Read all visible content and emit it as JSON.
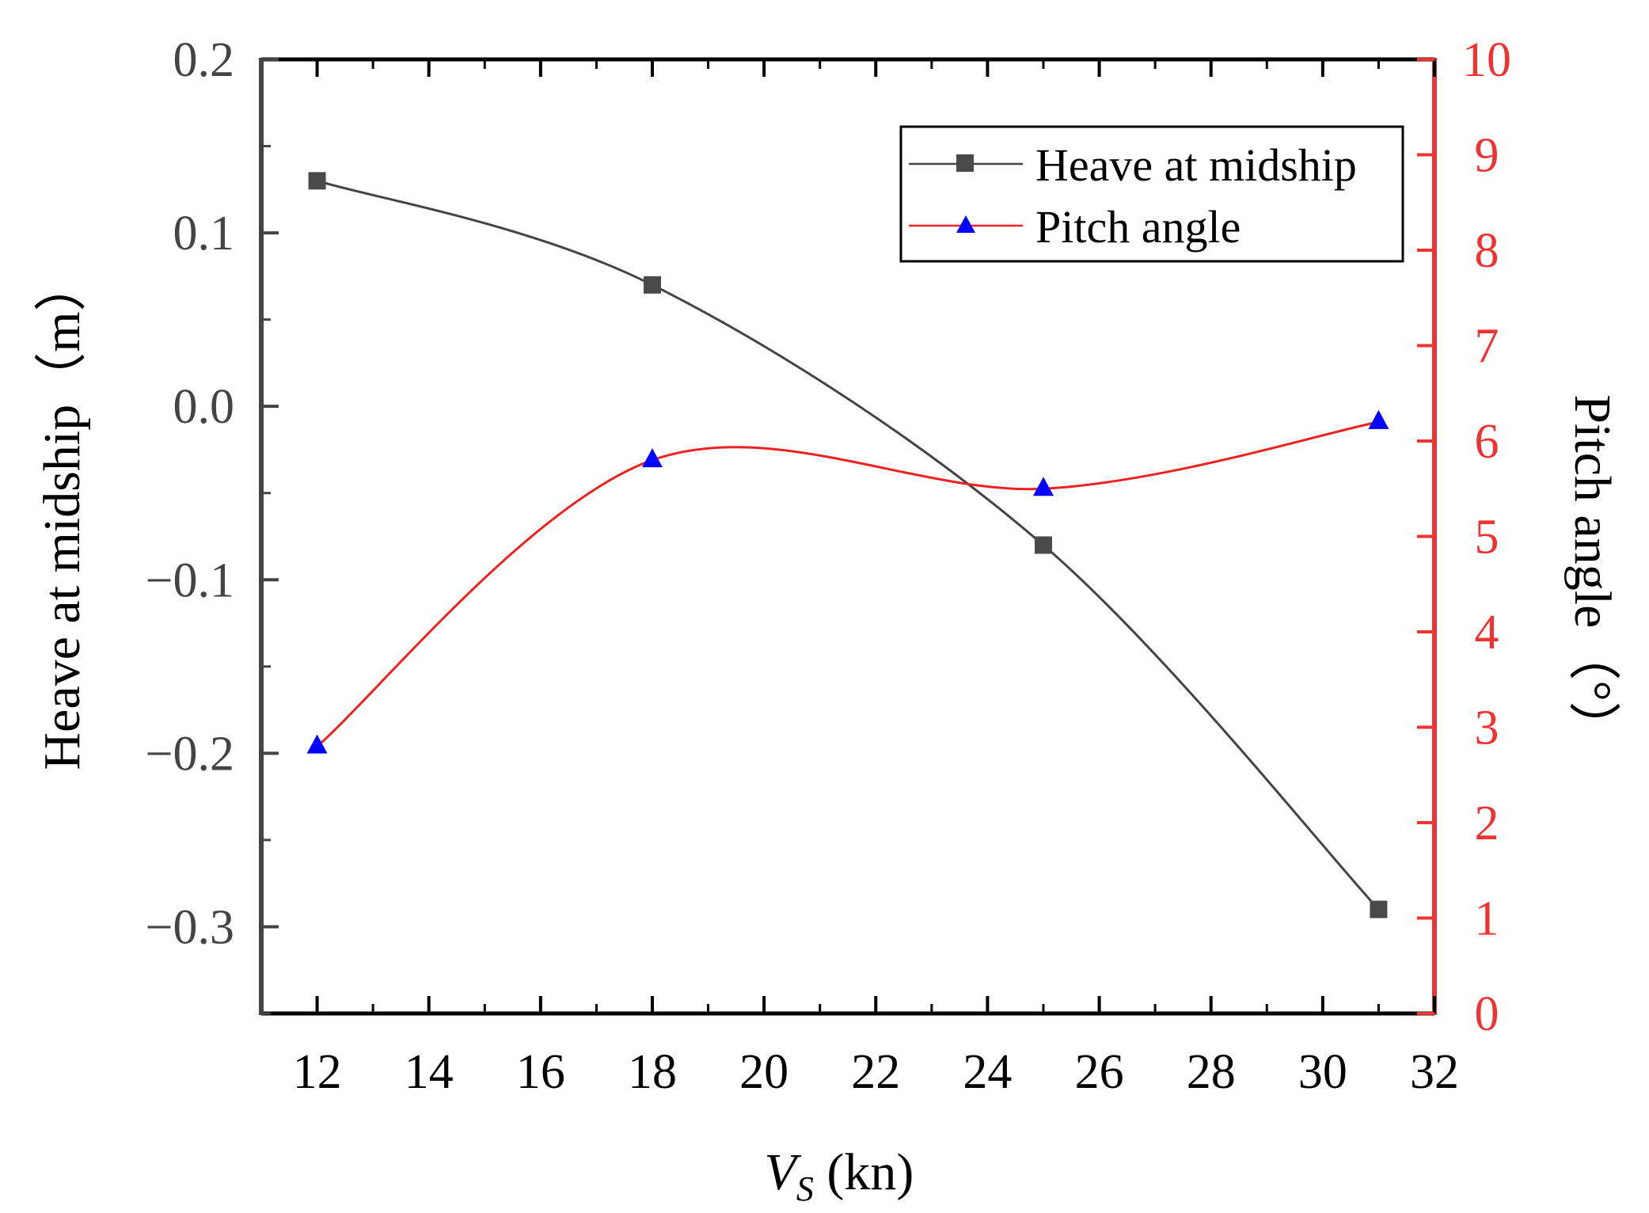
{
  "chart_data": {
    "type": "line",
    "x": [
      12,
      18,
      25,
      31
    ],
    "xlabel": {
      "italic": "V",
      "subscript": "S",
      "unit": " (kn)"
    },
    "ylabel_left": "Heave at midship（m）",
    "ylabel_right": "Pitch angle（°）",
    "xlim": [
      11,
      32
    ],
    "ylim_left": [
      -0.35,
      0.2
    ],
    "ylim_right": [
      0,
      10
    ],
    "x_ticks": [
      12,
      14,
      16,
      18,
      20,
      22,
      24,
      26,
      28,
      30,
      32
    ],
    "x_tick_labels": [
      "12",
      "14",
      "16",
      "18",
      "20",
      "22",
      "24",
      "26",
      "28",
      "30",
      "32"
    ],
    "y_left_ticks": [
      0.2,
      0.1,
      0.0,
      -0.1,
      -0.2,
      -0.3
    ],
    "y_left_tick_labels": [
      "0.2",
      "0.1",
      "0.0",
      "−0.1",
      "−0.2",
      "−0.3"
    ],
    "y_right_ticks": [
      0,
      1,
      2,
      3,
      4,
      5,
      6,
      7,
      8,
      9,
      10
    ],
    "y_right_tick_labels": [
      "0",
      "1",
      "2",
      "3",
      "4",
      "5",
      "6",
      "7",
      "8",
      "9",
      "10"
    ],
    "series": [
      {
        "name": "Heave at midship",
        "axis": "left",
        "values": [
          0.13,
          0.07,
          -0.08,
          -0.29
        ],
        "line_color": "#444444",
        "marker": "square",
        "marker_color": "#4a4a4a"
      },
      {
        "name": "Pitch angle",
        "axis": "right",
        "values": [
          2.8,
          5.8,
          5.5,
          6.2
        ],
        "line_color": "#ee2222",
        "marker": "triangle",
        "marker_color": "#0000ff"
      }
    ],
    "legend_position": "top-right",
    "grid": false,
    "colors": {
      "left_axis": "#444444",
      "right_axis": "#ee3333",
      "frame": "#000000"
    }
  }
}
